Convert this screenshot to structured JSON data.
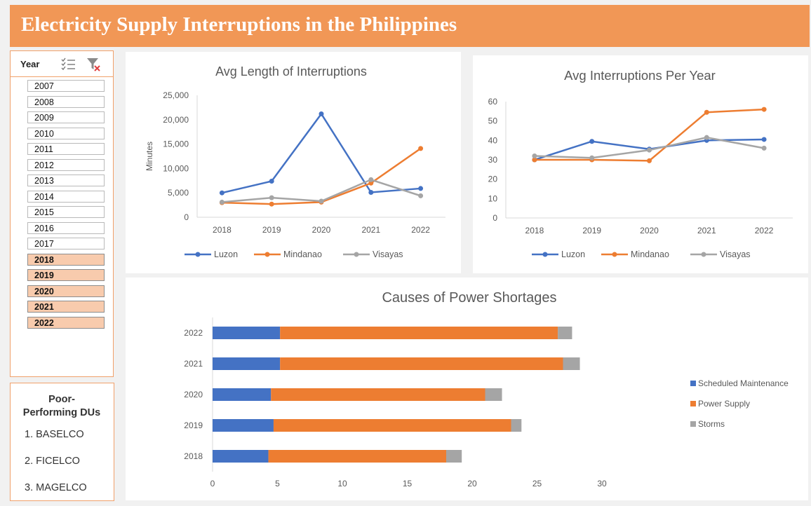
{
  "header": {
    "title": "Electricity Supply Interruptions in the Philippines"
  },
  "slicer": {
    "label": "Year",
    "icons": [
      "multi-select-icon",
      "clear-filter-icon"
    ],
    "items": [
      {
        "label": "2007",
        "selected": false
      },
      {
        "label": "2008",
        "selected": false
      },
      {
        "label": "2009",
        "selected": false
      },
      {
        "label": "2010",
        "selected": false
      },
      {
        "label": "2011",
        "selected": false
      },
      {
        "label": "2012",
        "selected": false
      },
      {
        "label": "2013",
        "selected": false
      },
      {
        "label": "2014",
        "selected": false
      },
      {
        "label": "2015",
        "selected": false
      },
      {
        "label": "2016",
        "selected": false
      },
      {
        "label": "2017",
        "selected": false
      },
      {
        "label": "2018",
        "selected": true
      },
      {
        "label": "2019",
        "selected": true
      },
      {
        "label": "2020",
        "selected": true
      },
      {
        "label": "2021",
        "selected": true
      },
      {
        "label": "2022",
        "selected": true
      }
    ]
  },
  "poor_dus": {
    "title_line1": "Poor-",
    "title_line2": "Performing DUs",
    "items": [
      "1. BASELCO",
      "2. FICELCO",
      "3. MAGELCO"
    ]
  },
  "colors": {
    "luzon": "#4472c4",
    "mindanao": "#ed7d31",
    "visayas": "#a5a5a5",
    "header": "#f19756",
    "selected": "#f8cbad"
  },
  "chart_data": [
    {
      "type": "line",
      "title": "Avg Length of Interruptions",
      "xlabel": "",
      "ylabel": "Minutes",
      "x": [
        "2018",
        "2019",
        "2020",
        "2021",
        "2022"
      ],
      "ylim": [
        0,
        25000
      ],
      "yticks": [
        "0",
        "5,000",
        "10,000",
        "15,000",
        "20,000",
        "25,000"
      ],
      "legend": "bottom",
      "grid": false,
      "series": [
        {
          "name": "Luzon",
          "values": [
            5000,
            7400,
            21200,
            5100,
            5900
          ]
        },
        {
          "name": "Mindanao",
          "values": [
            3000,
            2700,
            3100,
            7000,
            14100
          ]
        },
        {
          "name": "Visayas",
          "values": [
            3100,
            4000,
            3300,
            7700,
            4400
          ]
        }
      ]
    },
    {
      "type": "line",
      "title": "Avg Interruptions Per Year",
      "xlabel": "",
      "ylabel": "",
      "x": [
        "2018",
        "2019",
        "2020",
        "2021",
        "2022"
      ],
      "ylim": [
        0,
        60
      ],
      "yticks": [
        "0",
        "10",
        "20",
        "30",
        "40",
        "50",
        "60"
      ],
      "legend": "bottom",
      "grid": false,
      "series": [
        {
          "name": "Luzon",
          "values": [
            30,
            39.5,
            35.5,
            40,
            40.5
          ]
        },
        {
          "name": "Mindanao",
          "values": [
            30,
            30,
            29.5,
            54.5,
            56
          ]
        },
        {
          "name": "Visayas",
          "values": [
            32,
            31,
            35,
            41.5,
            36
          ]
        }
      ]
    },
    {
      "type": "bar",
      "orientation": "horizontal",
      "stacked": true,
      "title": "Causes of Power Shortages",
      "xlabel": "",
      "ylabel": "",
      "categories": [
        "2018",
        "2019",
        "2020",
        "2021",
        "2022"
      ],
      "xlim": [
        0,
        30
      ],
      "xticks": [
        "0",
        "5",
        "10",
        "15",
        "20",
        "25",
        "30"
      ],
      "legend": "right",
      "grid": false,
      "series": [
        {
          "name": "Scheduled Maintenance",
          "values": [
            4.3,
            4.7,
            4.5,
            5.2,
            5.2
          ]
        },
        {
          "name": "Power Supply",
          "values": [
            13.7,
            18.3,
            16.5,
            21.8,
            21.4
          ]
        },
        {
          "name": "Storms",
          "values": [
            1.2,
            0.8,
            1.3,
            1.3,
            1.1
          ]
        }
      ]
    }
  ]
}
